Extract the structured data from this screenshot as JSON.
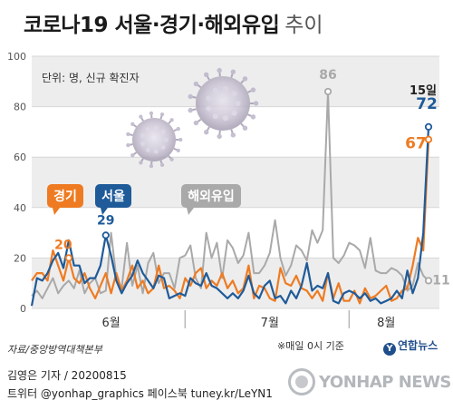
{
  "header": {
    "title": "코로나19 서울·경기·해외유입",
    "subtitle": "추이"
  },
  "colors": {
    "seoul": "#1f5b99",
    "gyeonggi": "#ee7b22",
    "overseas": "#a9a9a9",
    "band": "#ededed"
  },
  "chart_data": {
    "type": "line",
    "unit_note": "단위: 명, 신규 확진자",
    "ylim": [
      0,
      100
    ],
    "yticks": [
      "0",
      "20",
      "40",
      "60",
      "80",
      "100"
    ],
    "x_months": [
      "6월",
      "7월",
      "8월"
    ],
    "x": [
      "6/1",
      "6/2",
      "6/3",
      "6/4",
      "6/5",
      "6/6",
      "6/7",
      "6/8",
      "6/9",
      "6/10",
      "6/11",
      "6/12",
      "6/13",
      "6/14",
      "6/15",
      "6/16",
      "6/17",
      "6/18",
      "6/19",
      "6/20",
      "6/21",
      "6/22",
      "6/23",
      "6/24",
      "6/25",
      "6/26",
      "6/27",
      "6/28",
      "6/29",
      "6/30",
      "7/1",
      "7/2",
      "7/3",
      "7/4",
      "7/5",
      "7/6",
      "7/7",
      "7/8",
      "7/9",
      "7/10",
      "7/11",
      "7/12",
      "7/13",
      "7/14",
      "7/15",
      "7/16",
      "7/17",
      "7/18",
      "7/19",
      "7/20",
      "7/21",
      "7/22",
      "7/23",
      "7/24",
      "7/25",
      "7/26",
      "7/27",
      "7/28",
      "7/29",
      "7/30",
      "7/31",
      "8/1",
      "8/2",
      "8/3",
      "8/4",
      "8/5",
      "8/6",
      "8/7",
      "8/8",
      "8/9",
      "8/10",
      "8/11",
      "8/12",
      "8/13",
      "8/14",
      "8/15"
    ],
    "series": [
      {
        "name": "서울",
        "key": "seoul",
        "values": [
          1,
          12,
          11,
          14,
          19,
          22,
          16,
          27,
          17,
          17,
          10,
          12,
          12,
          17,
          29,
          21,
          11,
          6,
          10,
          13,
          19,
          14,
          11,
          8,
          13,
          12,
          4,
          5,
          6,
          5,
          12,
          10,
          9,
          14,
          9,
          8,
          6,
          4,
          6,
          4,
          7,
          13,
          6,
          4,
          9,
          11,
          4,
          5,
          2,
          7,
          4,
          9,
          18,
          7,
          9,
          8,
          14,
          3,
          2,
          6,
          7,
          6,
          4,
          6,
          3,
          4,
          2,
          3,
          4,
          7,
          4,
          15,
          6,
          12,
          30,
          72
        ],
        "peak_labels": [
          {
            "index": 14,
            "label": "29"
          },
          {
            "index": 75,
            "label": "72"
          }
        ]
      },
      {
        "name": "경기",
        "key": "gyeonggi",
        "values": [
          11,
          14,
          14,
          11,
          23,
          17,
          11,
          20,
          12,
          10,
          14,
          8,
          4,
          9,
          14,
          6,
          14,
          7,
          11,
          17,
          8,
          11,
          6,
          8,
          17,
          8,
          9,
          7,
          4,
          12,
          9,
          14,
          16,
          8,
          11,
          9,
          14,
          8,
          11,
          6,
          8,
          17,
          4,
          9,
          8,
          4,
          3,
          16,
          10,
          9,
          13,
          8,
          7,
          4,
          7,
          3,
          14,
          4,
          10,
          3,
          3,
          7,
          2,
          8,
          4,
          5,
          7,
          9,
          3,
          4,
          7,
          8,
          17,
          28,
          23,
          67
        ],
        "peak_labels": [
          {
            "index": 7,
            "label": "20"
          },
          {
            "index": 75,
            "label": "67"
          }
        ]
      },
      {
        "name": "해외유입",
        "key": "overseas",
        "values": [
          5,
          7,
          4,
          8,
          12,
          6,
          9,
          11,
          8,
          15,
          6,
          10,
          12,
          6,
          7,
          30,
          12,
          8,
          26,
          9,
          17,
          6,
          18,
          22,
          10,
          14,
          14,
          8,
          20,
          21,
          25,
          12,
          8,
          30,
          20,
          26,
          12,
          27,
          24,
          18,
          21,
          30,
          14,
          14,
          17,
          22,
          35,
          20,
          13,
          17,
          25,
          23,
          19,
          31,
          26,
          31,
          86,
          20,
          18,
          21,
          26,
          25,
          23,
          16,
          28,
          15,
          14,
          14,
          16,
          15,
          13,
          7,
          9,
          18,
          13,
          11
        ],
        "peak_labels": [
          {
            "index": 56,
            "label": "86"
          },
          {
            "index": 75,
            "label": "11"
          }
        ]
      }
    ],
    "series_labels": [
      "경기",
      "서울",
      "해외유입"
    ],
    "last_date_label": "15일"
  },
  "footer": {
    "source": "자료/중앙방역대책본부",
    "note": "※매일 0시 기준",
    "author": "김영은 기자 / 20200815",
    "social": "트위터 @yonhap_graphics  페이스북 tuney.kr/LeYN1",
    "logo_small": "연합뉴스",
    "logo_small_mark": "Y",
    "wordmark": "YONHAP NEWS"
  }
}
